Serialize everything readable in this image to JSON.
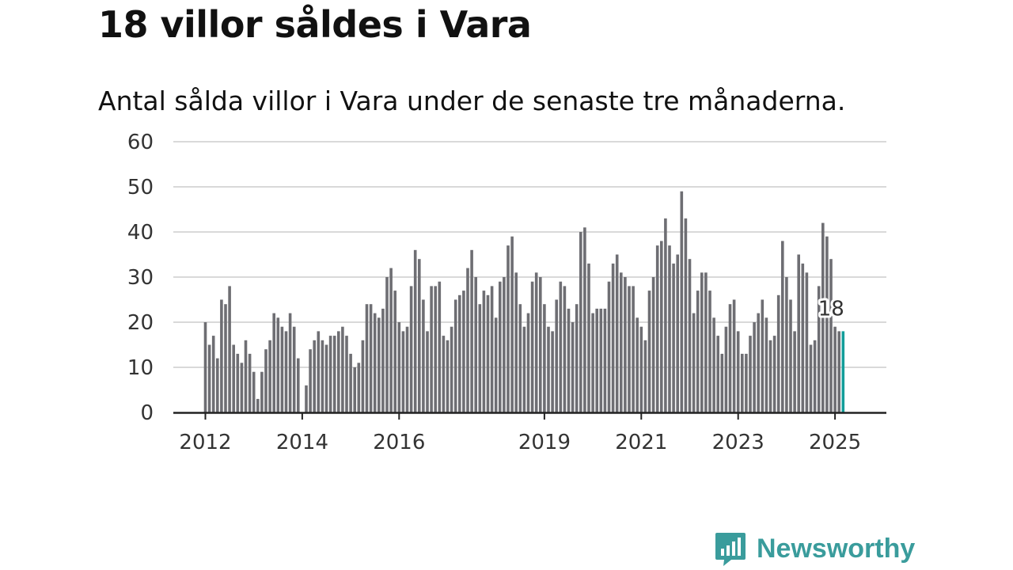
{
  "title": "18 villor såldes i Vara",
  "subtitle": "Antal sålda villor i Vara under de senaste tre månaderna.",
  "brand": {
    "name": "Newsworthy",
    "icon": "newsworthy-logo-icon",
    "color": "#3a9c9c"
  },
  "chart_data": {
    "type": "bar",
    "title": "18 villor såldes i Vara",
    "subtitle": "Antal sålda villor i Vara under de senaste tre månaderna.",
    "ylim": [
      0,
      60
    ],
    "yticks": [
      0,
      10,
      20,
      30,
      40,
      50,
      60
    ],
    "xticks": [
      {
        "label": "2012",
        "month": "2012-01"
      },
      {
        "label": "2014",
        "month": "2014-01"
      },
      {
        "label": "2016",
        "month": "2016-01"
      },
      {
        "label": "2019",
        "month": "2019-01"
      },
      {
        "label": "2021",
        "month": "2021-01"
      },
      {
        "label": "2023",
        "month": "2023-01"
      },
      {
        "label": "2025",
        "month": "2025-01"
      }
    ],
    "grid": true,
    "bar_color": "#6e6e73",
    "highlight_color": "#139e9a",
    "start_month": "2012-01",
    "values": [
      20,
      15,
      17,
      12,
      25,
      24,
      28,
      15,
      13,
      11,
      16,
      13,
      9,
      3,
      9,
      14,
      16,
      22,
      21,
      19,
      18,
      22,
      19,
      12,
      0,
      6,
      14,
      16,
      18,
      16,
      15,
      17,
      17,
      18,
      19,
      17,
      13,
      10,
      11,
      16,
      24,
      24,
      22,
      21,
      23,
      30,
      32,
      27,
      20,
      18,
      19,
      28,
      36,
      34,
      25,
      18,
      28,
      28,
      29,
      17,
      16,
      19,
      25,
      26,
      27,
      32,
      36,
      30,
      24,
      27,
      26,
      28,
      21,
      29,
      30,
      37,
      39,
      31,
      24,
      19,
      22,
      29,
      31,
      30,
      24,
      19,
      18,
      25,
      29,
      28,
      23,
      20,
      24,
      40,
      41,
      33,
      22,
      23,
      23,
      23,
      29,
      33,
      35,
      31,
      30,
      28,
      28,
      21,
      19,
      16,
      27,
      30,
      37,
      38,
      43,
      37,
      33,
      35,
      49,
      43,
      34,
      22,
      27,
      31,
      31,
      27,
      21,
      17,
      13,
      19,
      24,
      25,
      18,
      13,
      13,
      17,
      20,
      22,
      25,
      21,
      16,
      17,
      26,
      38,
      30,
      25,
      18,
      35,
      33,
      31,
      15,
      16,
      28,
      42,
      39,
      34,
      19,
      18,
      18
    ],
    "annotation": {
      "label": "18",
      "value": 18,
      "month": "2025-03"
    }
  }
}
